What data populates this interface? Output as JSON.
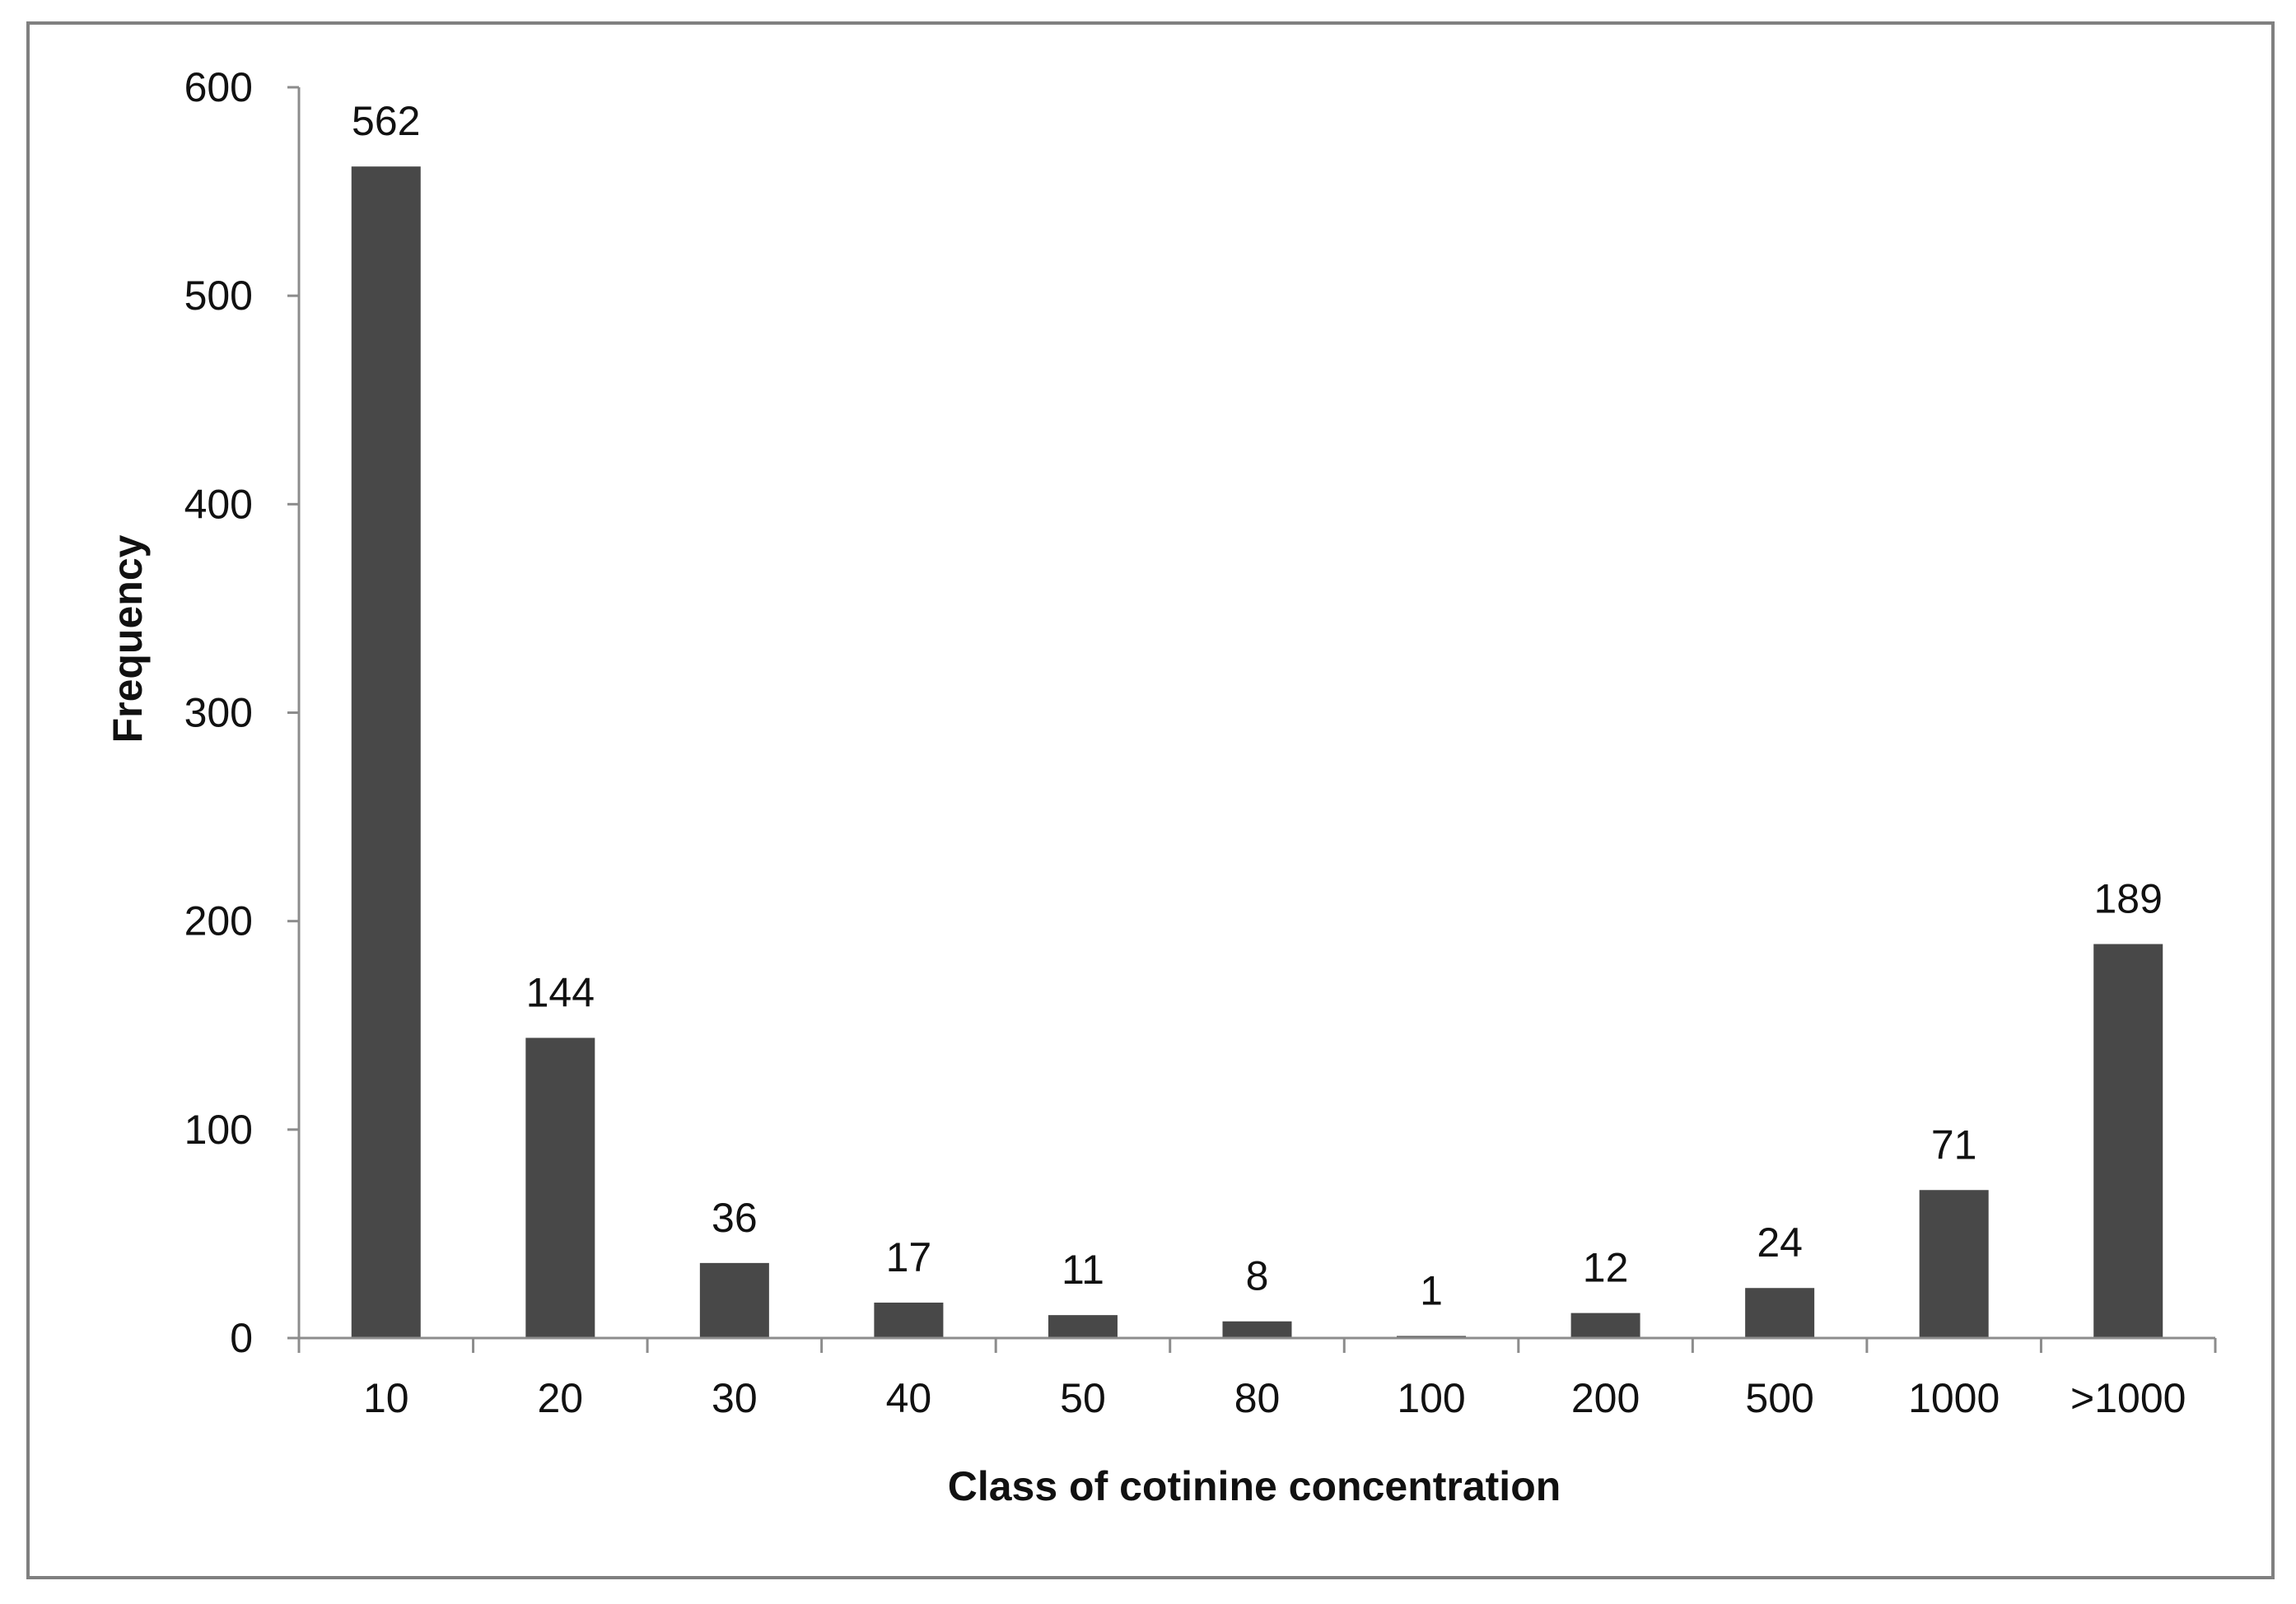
{
  "chart_data": {
    "type": "bar",
    "title": "",
    "xlabel": "Class of cotinine concentration",
    "ylabel": "Frequency",
    "categories": [
      "10",
      "20",
      "30",
      "40",
      "50",
      "80",
      "100",
      "200",
      "500",
      "1000",
      ">1000"
    ],
    "values": [
      562,
      144,
      36,
      17,
      11,
      8,
      1,
      12,
      24,
      71,
      189
    ],
    "ylim": [
      0,
      600
    ],
    "yticks": [
      0,
      100,
      200,
      300,
      400,
      500,
      600
    ],
    "grid": false,
    "legend": "none",
    "data_labels": true,
    "bar_color": "#484848",
    "axis_color": "#8c8c8c",
    "frame_color": "#808080"
  }
}
